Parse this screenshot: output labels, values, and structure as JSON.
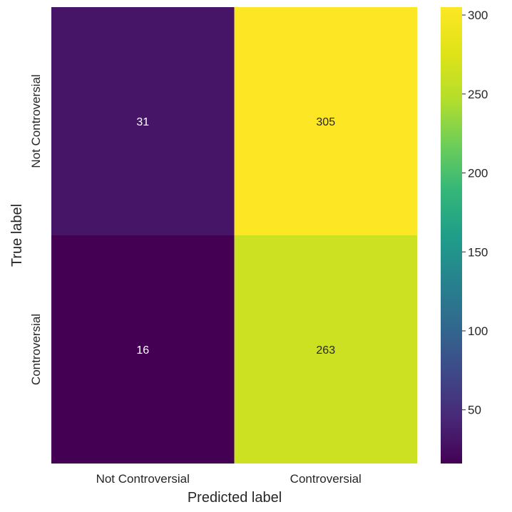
{
  "chart_data": {
    "type": "heatmap",
    "x_categories": [
      "Not Controversial",
      "Controversial"
    ],
    "y_categories": [
      "Not Controversial",
      "Controversial"
    ],
    "matrix": [
      [
        31,
        305
      ],
      [
        16,
        263
      ]
    ],
    "xlabel": "Predicted label",
    "ylabel": "True label",
    "colormap": "viridis",
    "colorbar": {
      "range": [
        16,
        305
      ],
      "ticks": [
        50,
        100,
        150,
        200,
        250,
        300
      ]
    },
    "grid": false
  }
}
